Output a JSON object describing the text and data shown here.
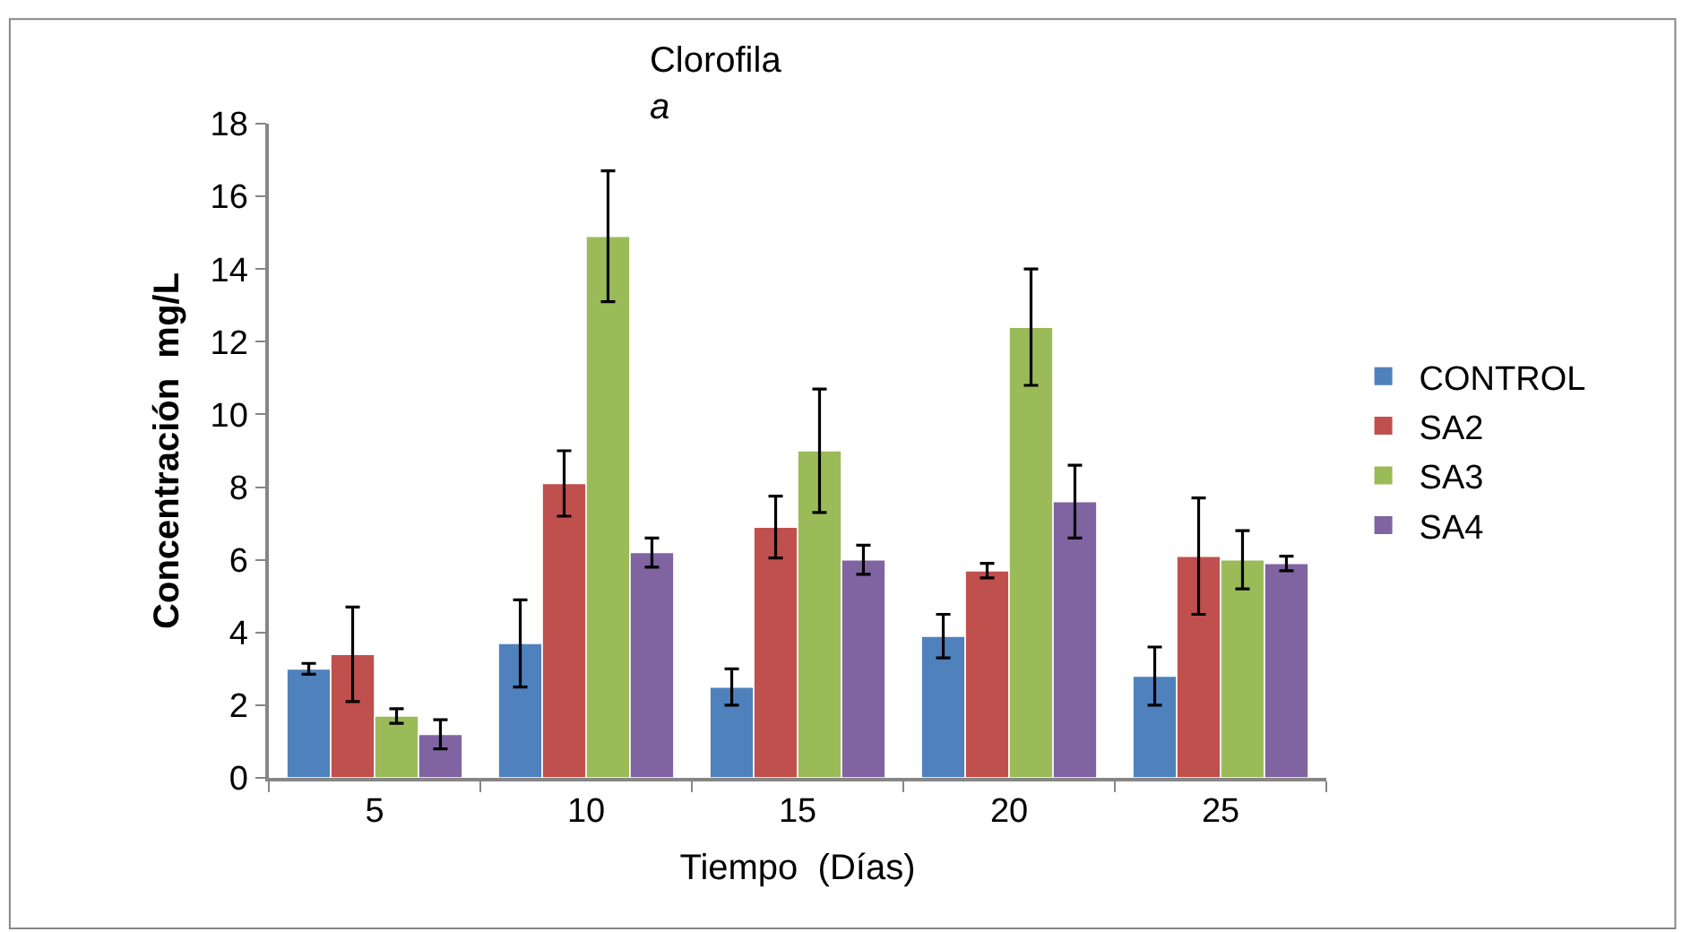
{
  "chart_data": {
    "type": "bar",
    "title": "Clorofila a",
    "xlabel": "Tiempo  (Días)",
    "ylabel": "Concentración  mg/L",
    "categories": [
      "5",
      "10",
      "15",
      "20",
      "25"
    ],
    "series": [
      {
        "name": "CONTROL",
        "color": "#4f81bd",
        "values": [
          3.0,
          3.7,
          2.5,
          3.9,
          2.8
        ],
        "errors": [
          0.15,
          1.2,
          0.5,
          0.6,
          0.8
        ]
      },
      {
        "name": "SA2",
        "color": "#c0504d",
        "values": [
          3.4,
          8.1,
          6.9,
          5.7,
          6.1
        ],
        "errors": [
          1.3,
          0.9,
          0.85,
          0.2,
          1.6
        ]
      },
      {
        "name": "SA3",
        "color": "#9bbb59",
        "values": [
          1.7,
          14.9,
          9.0,
          12.4,
          6.0
        ],
        "errors": [
          0.2,
          1.8,
          1.7,
          1.6,
          0.8
        ]
      },
      {
        "name": "SA4",
        "color": "#8064a2",
        "values": [
          1.2,
          6.2,
          6.0,
          7.6,
          5.9
        ],
        "errors": [
          0.4,
          0.4,
          0.4,
          1.0,
          0.2
        ]
      }
    ],
    "ylim": [
      0,
      18
    ],
    "yticks": [
      0,
      2,
      4,
      6,
      8,
      10,
      12,
      14,
      16,
      18
    ],
    "legend": "right"
  }
}
